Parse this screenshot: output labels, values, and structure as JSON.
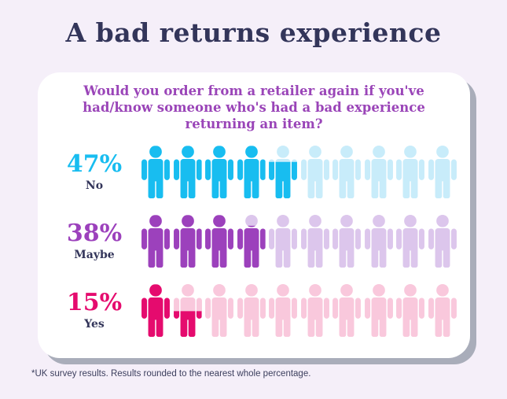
{
  "page": {
    "title": "A bad returns experience",
    "footnote": "*UK survey results. Results rounded to the nearest whole percentage.",
    "background_color": "#F5EFF9",
    "title_color": "#33355A",
    "card_shadow_color": "#A9ADBA"
  },
  "card": {
    "question": "Would you order from a retailer again if you've had/know someone who's had a bad experience returning an item?",
    "question_lines": [
      "Would you order from a retailer again if you've",
      "had/know someone who's had a bad experience",
      "returning an item?"
    ],
    "question_color": "#9A45B8"
  },
  "chart_data": {
    "type": "pictogram",
    "title": "Would you order from a retailer again if you've had/know someone who's had a bad experience returning an item?",
    "unit_total": 10,
    "percent_per_icon": 10,
    "icon": "person-icon",
    "legend": false,
    "rows": [
      {
        "label": "No",
        "percent": 47,
        "percent_text": "47%",
        "filled_units": 4.7,
        "color_full": "#18BDF0",
        "color_light": "#C8ECFA"
      },
      {
        "label": "Maybe",
        "percent": 38,
        "percent_text": "38%",
        "filled_units": 3.8,
        "color_full": "#9C41BC",
        "color_light": "#DCC6EC"
      },
      {
        "label": "Yes",
        "percent": 15,
        "percent_text": "15%",
        "filled_units": 1.5,
        "color_full": "#E50B6E",
        "color_light": "#F9C8DC"
      }
    ],
    "label_color": "#33355A"
  }
}
